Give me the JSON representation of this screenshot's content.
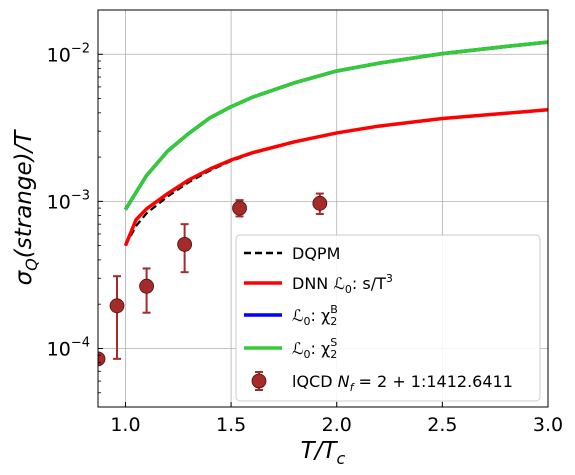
{
  "chart_data": {
    "type": "line",
    "xlabel": "T/T",
    "xlabel_sub": "c",
    "ylabel_prefix": "σ",
    "ylabel_sub": "Q",
    "ylabel_rest": "(strange)/T",
    "xlim": [
      0.87,
      3.0
    ],
    "ylim": [
      4e-05,
      0.02
    ],
    "yscale": "log",
    "grid": true,
    "legend_position": "lower-right",
    "x_ticks": [
      1.0,
      1.5,
      2.0,
      2.5,
      3.0
    ],
    "x_tick_labels": [
      "1.0",
      "1.5",
      "2.0",
      "2.5",
      "3.0"
    ],
    "y_ticks": [
      0.0001,
      0.001,
      0.01
    ],
    "y_tick_labels": [
      {
        "base": "10",
        "exp": "−4"
      },
      {
        "base": "10",
        "exp": "−3"
      },
      {
        "base": "10",
        "exp": "−2"
      }
    ],
    "series": [
      {
        "name": "DQPM",
        "style": "dashed",
        "color": "#000000",
        "x": [
          1.0,
          1.05,
          1.1,
          1.2,
          1.3,
          1.4,
          1.5,
          1.6,
          1.8,
          2.0,
          2.2,
          2.5,
          2.8,
          3.0
        ],
        "y": [
          0.0005,
          0.00068,
          0.00083,
          0.00108,
          0.00135,
          0.00162,
          0.00188,
          0.00212,
          0.00252,
          0.00293,
          0.00323,
          0.00365,
          0.00395,
          0.00418
        ]
      },
      {
        "name": "DNN ℒ₀: s/T³",
        "label_main": "DNN ",
        "label_math": "ℒ",
        "label_sub": "0",
        "label_rest": ": s/T",
        "label_sup": "3",
        "style": "solid",
        "color": "#ff0000",
        "x": [
          1.0,
          1.05,
          1.1,
          1.2,
          1.3,
          1.4,
          1.5,
          1.6,
          1.8,
          2.0,
          2.2,
          2.5,
          2.8,
          3.0
        ],
        "y": [
          0.0005,
          0.00075,
          0.00089,
          0.00113,
          0.0014,
          0.00166,
          0.00191,
          0.00214,
          0.00254,
          0.00292,
          0.00325,
          0.00366,
          0.00397,
          0.0042
        ]
      },
      {
        "name": "ℒ₀: χ₂ᴮ",
        "label_math": "ℒ",
        "label_sub": "0",
        "label_rest": ": χ",
        "label_sub2": "2",
        "label_sup": "B",
        "style": "solid",
        "color": "#0000ff",
        "x": [
          1.0,
          1.05,
          1.1,
          1.2,
          1.3,
          1.4,
          1.5,
          1.6,
          1.8,
          2.0,
          2.2,
          2.5,
          2.8,
          3.0
        ],
        "y": [
          0.00088,
          0.00115,
          0.0015,
          0.0022,
          0.0029,
          0.0037,
          0.0044,
          0.0051,
          0.0064,
          0.0077,
          0.0087,
          0.0101,
          0.0113,
          0.0121
        ]
      },
      {
        "name": "ℒ₀: χ₂ˢ",
        "label_math": "ℒ",
        "label_sub": "0",
        "label_rest": ": χ",
        "label_sub2": "2",
        "label_sup": "S",
        "style": "solid",
        "color": "#33cc33",
        "x": [
          1.0,
          1.05,
          1.1,
          1.2,
          1.3,
          1.4,
          1.5,
          1.6,
          1.8,
          2.0,
          2.2,
          2.5,
          2.8,
          3.0
        ],
        "y": [
          0.00088,
          0.00115,
          0.0015,
          0.0022,
          0.0029,
          0.0037,
          0.0044,
          0.0051,
          0.0064,
          0.0077,
          0.0087,
          0.0101,
          0.0113,
          0.0121
        ]
      }
    ],
    "scatter": {
      "name": "lQCD N_f = 2 + 1:1412.6411",
      "label_main": "lQCD ",
      "label_math": "N",
      "label_sub": "f",
      "label_rest": " = 2 + 1:1412.6411",
      "color": "#a52a2a",
      "points": [
        {
          "x": 0.87,
          "y": 8.5e-05,
          "ylo": 8.5e-05,
          "yhi": 8.5e-05
        },
        {
          "x": 0.96,
          "y": 0.000195,
          "ylo": 8.5e-05,
          "yhi": 0.00031
        },
        {
          "x": 1.1,
          "y": 0.000265,
          "ylo": 0.000175,
          "yhi": 0.00035
        },
        {
          "x": 1.28,
          "y": 0.00051,
          "ylo": 0.00033,
          "yhi": 0.0007
        },
        {
          "x": 1.54,
          "y": 0.0009,
          "ylo": 0.00079,
          "yhi": 0.00102
        },
        {
          "x": 1.92,
          "y": 0.00097,
          "ylo": 0.00082,
          "yhi": 0.00113
        }
      ]
    }
  }
}
